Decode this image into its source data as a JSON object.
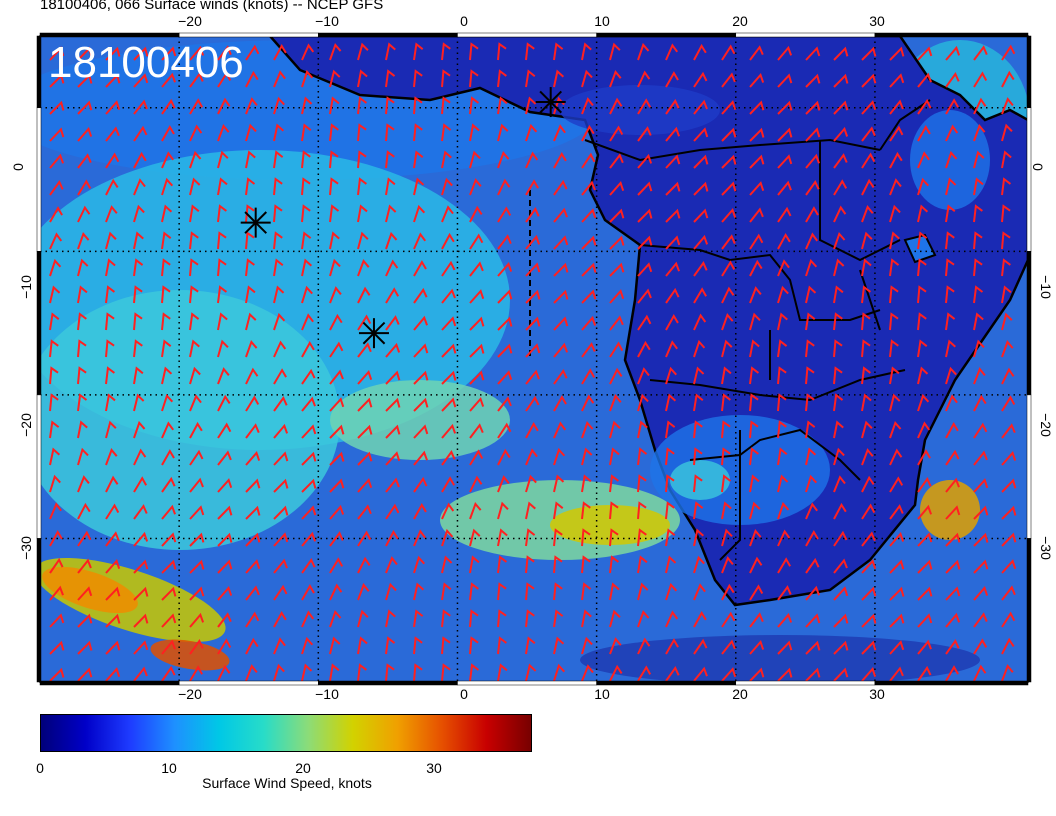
{
  "title": "18100406, 066 Surface winds (knots) -- NCEP GFS",
  "stamp": "18100406",
  "map": {
    "lon_range": [
      -30,
      41
    ],
    "lat_range": [
      -40,
      5
    ],
    "lon_ticks": [
      -20,
      -10,
      0,
      10,
      20,
      30
    ],
    "lon_tick_labels": [
      "−20",
      "−10",
      "0",
      "10",
      "20",
      "30"
    ],
    "lat_ticks": [
      0,
      -10,
      -20,
      -30
    ],
    "lat_tick_labels": [
      "0",
      "−10",
      "−20",
      "−30"
    ],
    "markers": [
      {
        "lon": -14.5,
        "lat": -8.0,
        "symbol": "asterisk"
      },
      {
        "lon": -6.0,
        "lat": -15.7,
        "symbol": "asterisk"
      },
      {
        "lon": 6.7,
        "lat": 0.4,
        "symbol": "asterisk"
      }
    ],
    "barb_color": "#ff2020",
    "coast_color": "#000000"
  },
  "colorbar": {
    "label": "Surface Wind Speed, knots",
    "range": [
      0,
      38
    ],
    "ticks": [
      0,
      10,
      20,
      30
    ],
    "tick_labels": [
      "0",
      "10",
      "20",
      "30"
    ],
    "colors": [
      "#00007a",
      "#0000c8",
      "#1e3cff",
      "#1e90ff",
      "#00c8e6",
      "#28dcc8",
      "#8cdc78",
      "#d2d200",
      "#f0a000",
      "#e65000",
      "#c80000",
      "#780000"
    ]
  }
}
